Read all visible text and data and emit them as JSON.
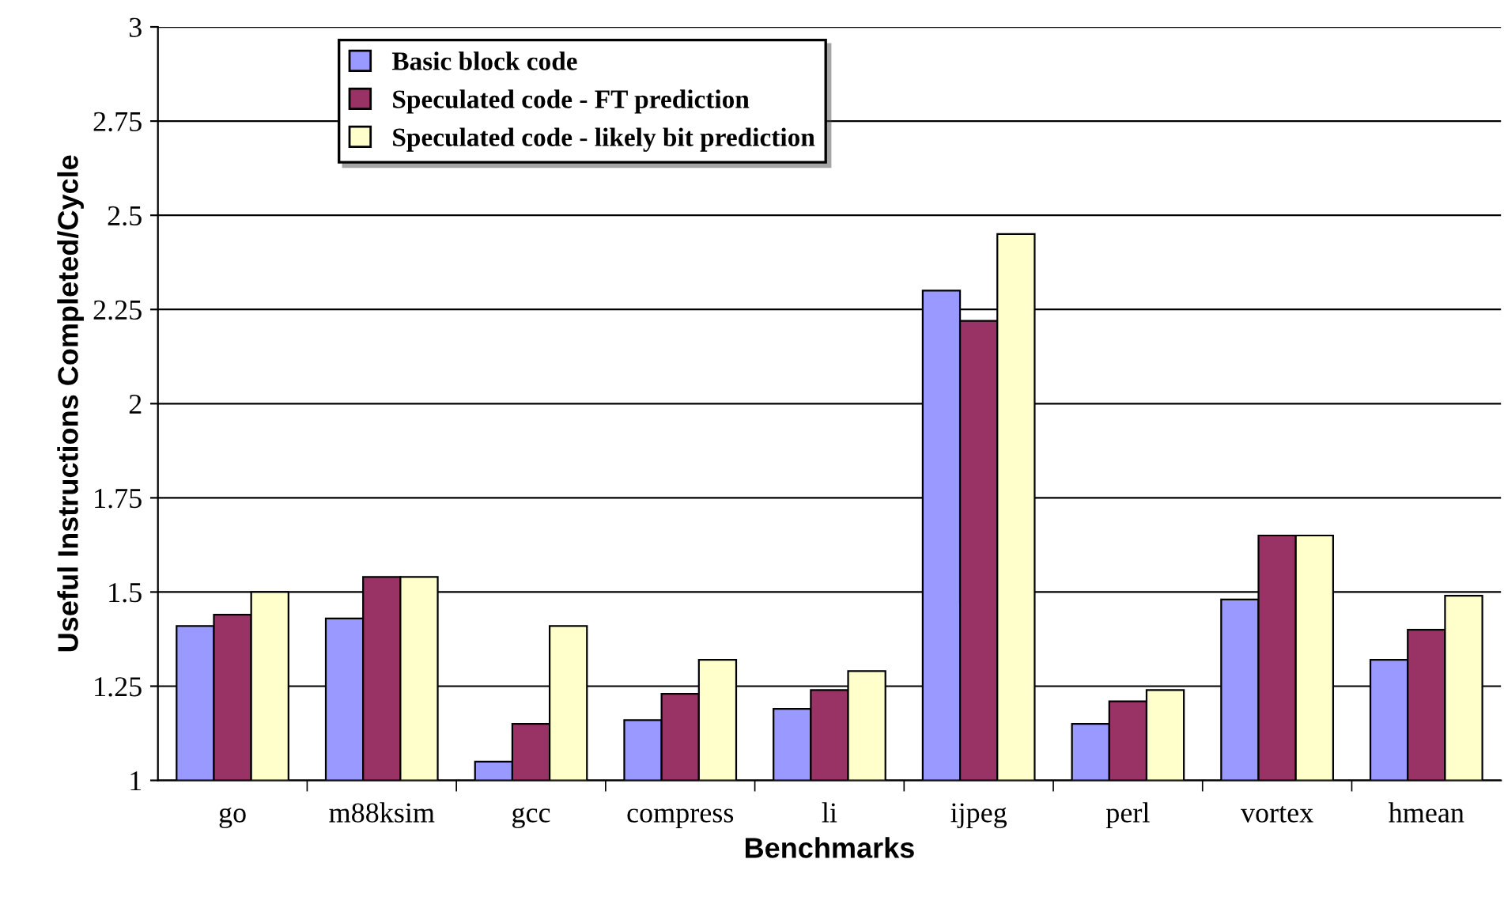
{
  "chart_data": {
    "type": "bar",
    "xlabel": "Benchmarks",
    "ylabel": "Useful Instructions Completed/Cycle",
    "categories": [
      "go",
      "m88ksim",
      "gcc",
      "compress",
      "li",
      "ijpeg",
      "perl",
      "vortex",
      "hmean"
    ],
    "series": [
      {
        "name": "Basic block code",
        "color": "#9999ff",
        "values": [
          1.41,
          1.43,
          1.05,
          1.16,
          1.19,
          2.3,
          1.15,
          1.48,
          1.32
        ]
      },
      {
        "name": "Speculated code - FT prediction",
        "color": "#993366",
        "values": [
          1.44,
          1.54,
          1.15,
          1.23,
          1.24,
          2.22,
          1.21,
          1.65,
          1.4
        ]
      },
      {
        "name": "Speculated code - likely bit prediction",
        "color": "#ffffcc",
        "values": [
          1.5,
          1.54,
          1.41,
          1.32,
          1.29,
          2.45,
          1.24,
          1.65,
          1.49
        ]
      }
    ],
    "ylim": [
      1,
      3
    ],
    "yticks": [
      1,
      1.25,
      1.5,
      1.75,
      2,
      2.25,
      2.5,
      2.75,
      3
    ],
    "grid": "y",
    "legend": "top left"
  }
}
